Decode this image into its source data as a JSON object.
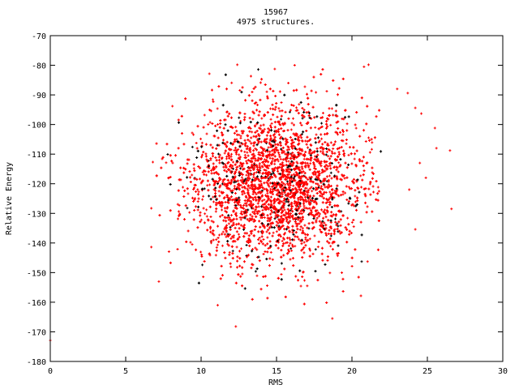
{
  "chart_data": {
    "type": "scatter",
    "title": "15967",
    "subtitle": "4975 structures.",
    "xlabel": "RMS",
    "ylabel": "Relative Energy",
    "xlim": [
      0,
      30
    ],
    "ylim": [
      -180,
      -70
    ],
    "xticks": [
      "0",
      "5",
      "10",
      "15",
      "20",
      "25",
      "30"
    ],
    "yticks": [
      "-70",
      "-80",
      "-90",
      "-100",
      "-110",
      "-120",
      "-130",
      "-140",
      "-150",
      "-160",
      "-170",
      "-180"
    ],
    "grid": false,
    "legend": "none",
    "point_count": 4975,
    "colors": {
      "primary": "#ff0000",
      "secondary": "#000000",
      "axis": "#000000"
    },
    "bulk_distribution": {
      "x_mean": 15.0,
      "x_sd": 3.0,
      "x_range": [
        7,
        22
      ],
      "y_mean": -120,
      "y_sd": 13,
      "y_range": [
        -162,
        -80
      ],
      "secondary_fraction": 0.1
    },
    "points": [
      [
        26.6,
        -128.5
      ],
      [
        26.5,
        -108.8
      ],
      [
        25.6,
        -108.0
      ],
      [
        25.5,
        -101.2
      ],
      [
        24.6,
        -96.3
      ],
      [
        24.2,
        -94.4
      ],
      [
        23.7,
        -89.4
      ],
      [
        23.0,
        -88.0
      ],
      [
        24.2,
        -135.4
      ],
      [
        12.3,
        -168.2
      ],
      [
        11.1,
        -161.0
      ],
      [
        6.7,
        -141.4
      ],
      [
        6.7,
        -128.3
      ],
      [
        6.8,
        -112.7
      ],
      [
        8.1,
        -93.8
      ],
      [
        21.1,
        -79.8
      ],
      [
        12.4,
        -79.8
      ],
      [
        18.7,
        -165.5
      ],
      [
        0.0,
        -172.9
      ],
      [
        20.8,
        -80.5
      ],
      [
        16.2,
        -80.0
      ],
      [
        24.9,
        -118.0
      ],
      [
        23.8,
        -122.0
      ],
      [
        24.5,
        -113.0
      ],
      [
        7.2,
        -153.0
      ]
    ]
  }
}
